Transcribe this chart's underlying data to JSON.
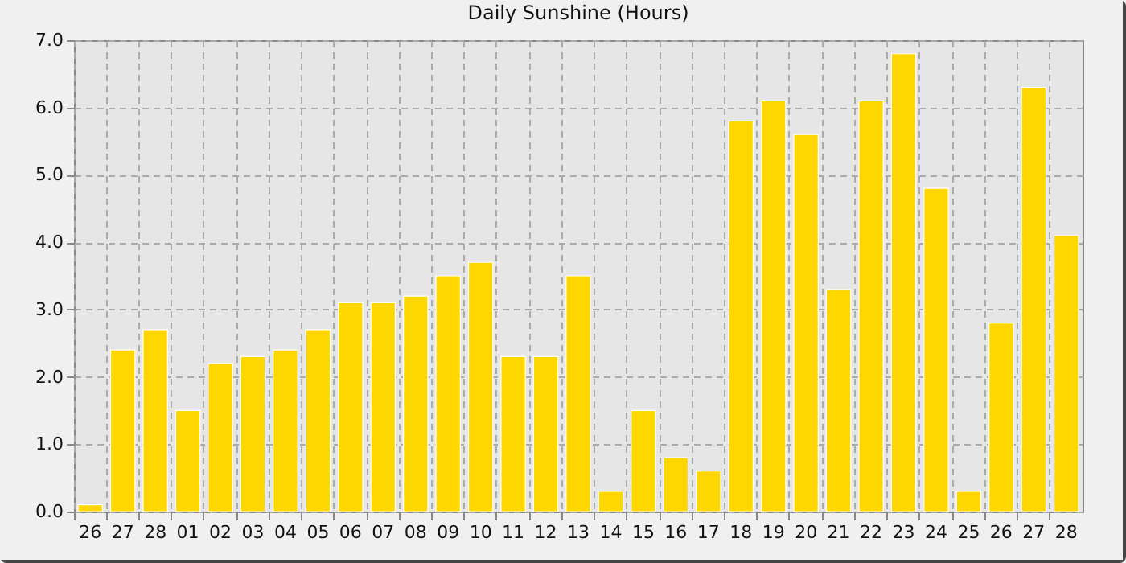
{
  "chart_data": {
    "type": "bar",
    "title": "Daily Sunshine (Hours)",
    "categories": [
      "26",
      "27",
      "28",
      "01",
      "02",
      "03",
      "04",
      "05",
      "06",
      "07",
      "08",
      "09",
      "10",
      "11",
      "12",
      "13",
      "14",
      "15",
      "16",
      "17",
      "18",
      "19",
      "20",
      "21",
      "22",
      "23",
      "24",
      "25",
      "26",
      "27",
      "28"
    ],
    "values": [
      0.1,
      2.4,
      2.7,
      1.5,
      2.2,
      2.3,
      2.4,
      2.7,
      3.1,
      3.1,
      3.2,
      3.5,
      3.7,
      2.3,
      2.3,
      3.5,
      0.3,
      1.5,
      0.8,
      0.6,
      5.8,
      6.1,
      5.6,
      3.3,
      6.1,
      6.8,
      4.8,
      0.3,
      2.8,
      6.3,
      4.1
    ],
    "color": "#ffd700",
    "ylim": [
      0,
      7
    ],
    "yticks": [
      {
        "value": 0,
        "label": "0.0"
      },
      {
        "value": 1,
        "label": "1.0"
      },
      {
        "value": 2,
        "label": "2.0"
      },
      {
        "value": 3,
        "label": "3.0"
      },
      {
        "value": 4,
        "label": "4.0"
      },
      {
        "value": 5,
        "label": "5.0"
      },
      {
        "value": 6,
        "label": "6.0"
      },
      {
        "value": 7,
        "label": "7.0"
      }
    ],
    "grid": true
  }
}
